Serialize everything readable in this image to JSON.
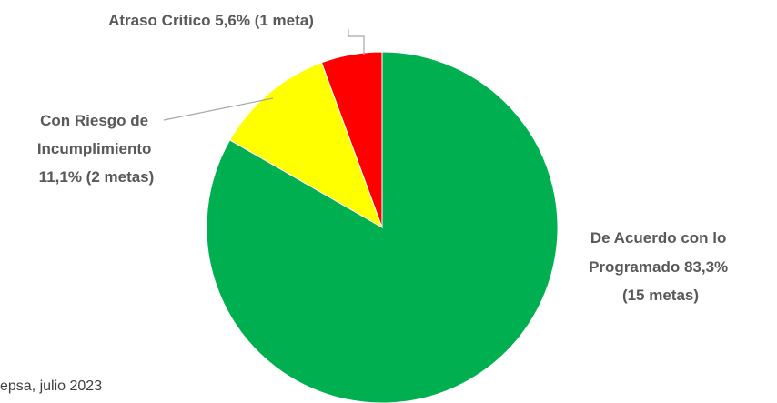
{
  "chart_data": {
    "type": "pie",
    "slices": [
      {
        "label_lines": [
          "De Acuerdo con lo",
          "Programado 83,3%",
          "(15 metas)"
        ],
        "value": 83.3,
        "count": 15,
        "color": "#00b050"
      },
      {
        "label_lines": [
          "Con Riesgo de",
          "Incumplimiento",
          "11,1% (2 metas)"
        ],
        "value": 11.1,
        "count": 2,
        "color": "#ffff00"
      },
      {
        "label_lines": [
          "Atraso Crítico 5,6% (1 meta)"
        ],
        "value": 5.6,
        "count": 1,
        "color": "#ff0000"
      }
    ],
    "start_angle_deg": 0,
    "direction": "counterclockwise",
    "source_text": "epsa, julio 2023"
  }
}
